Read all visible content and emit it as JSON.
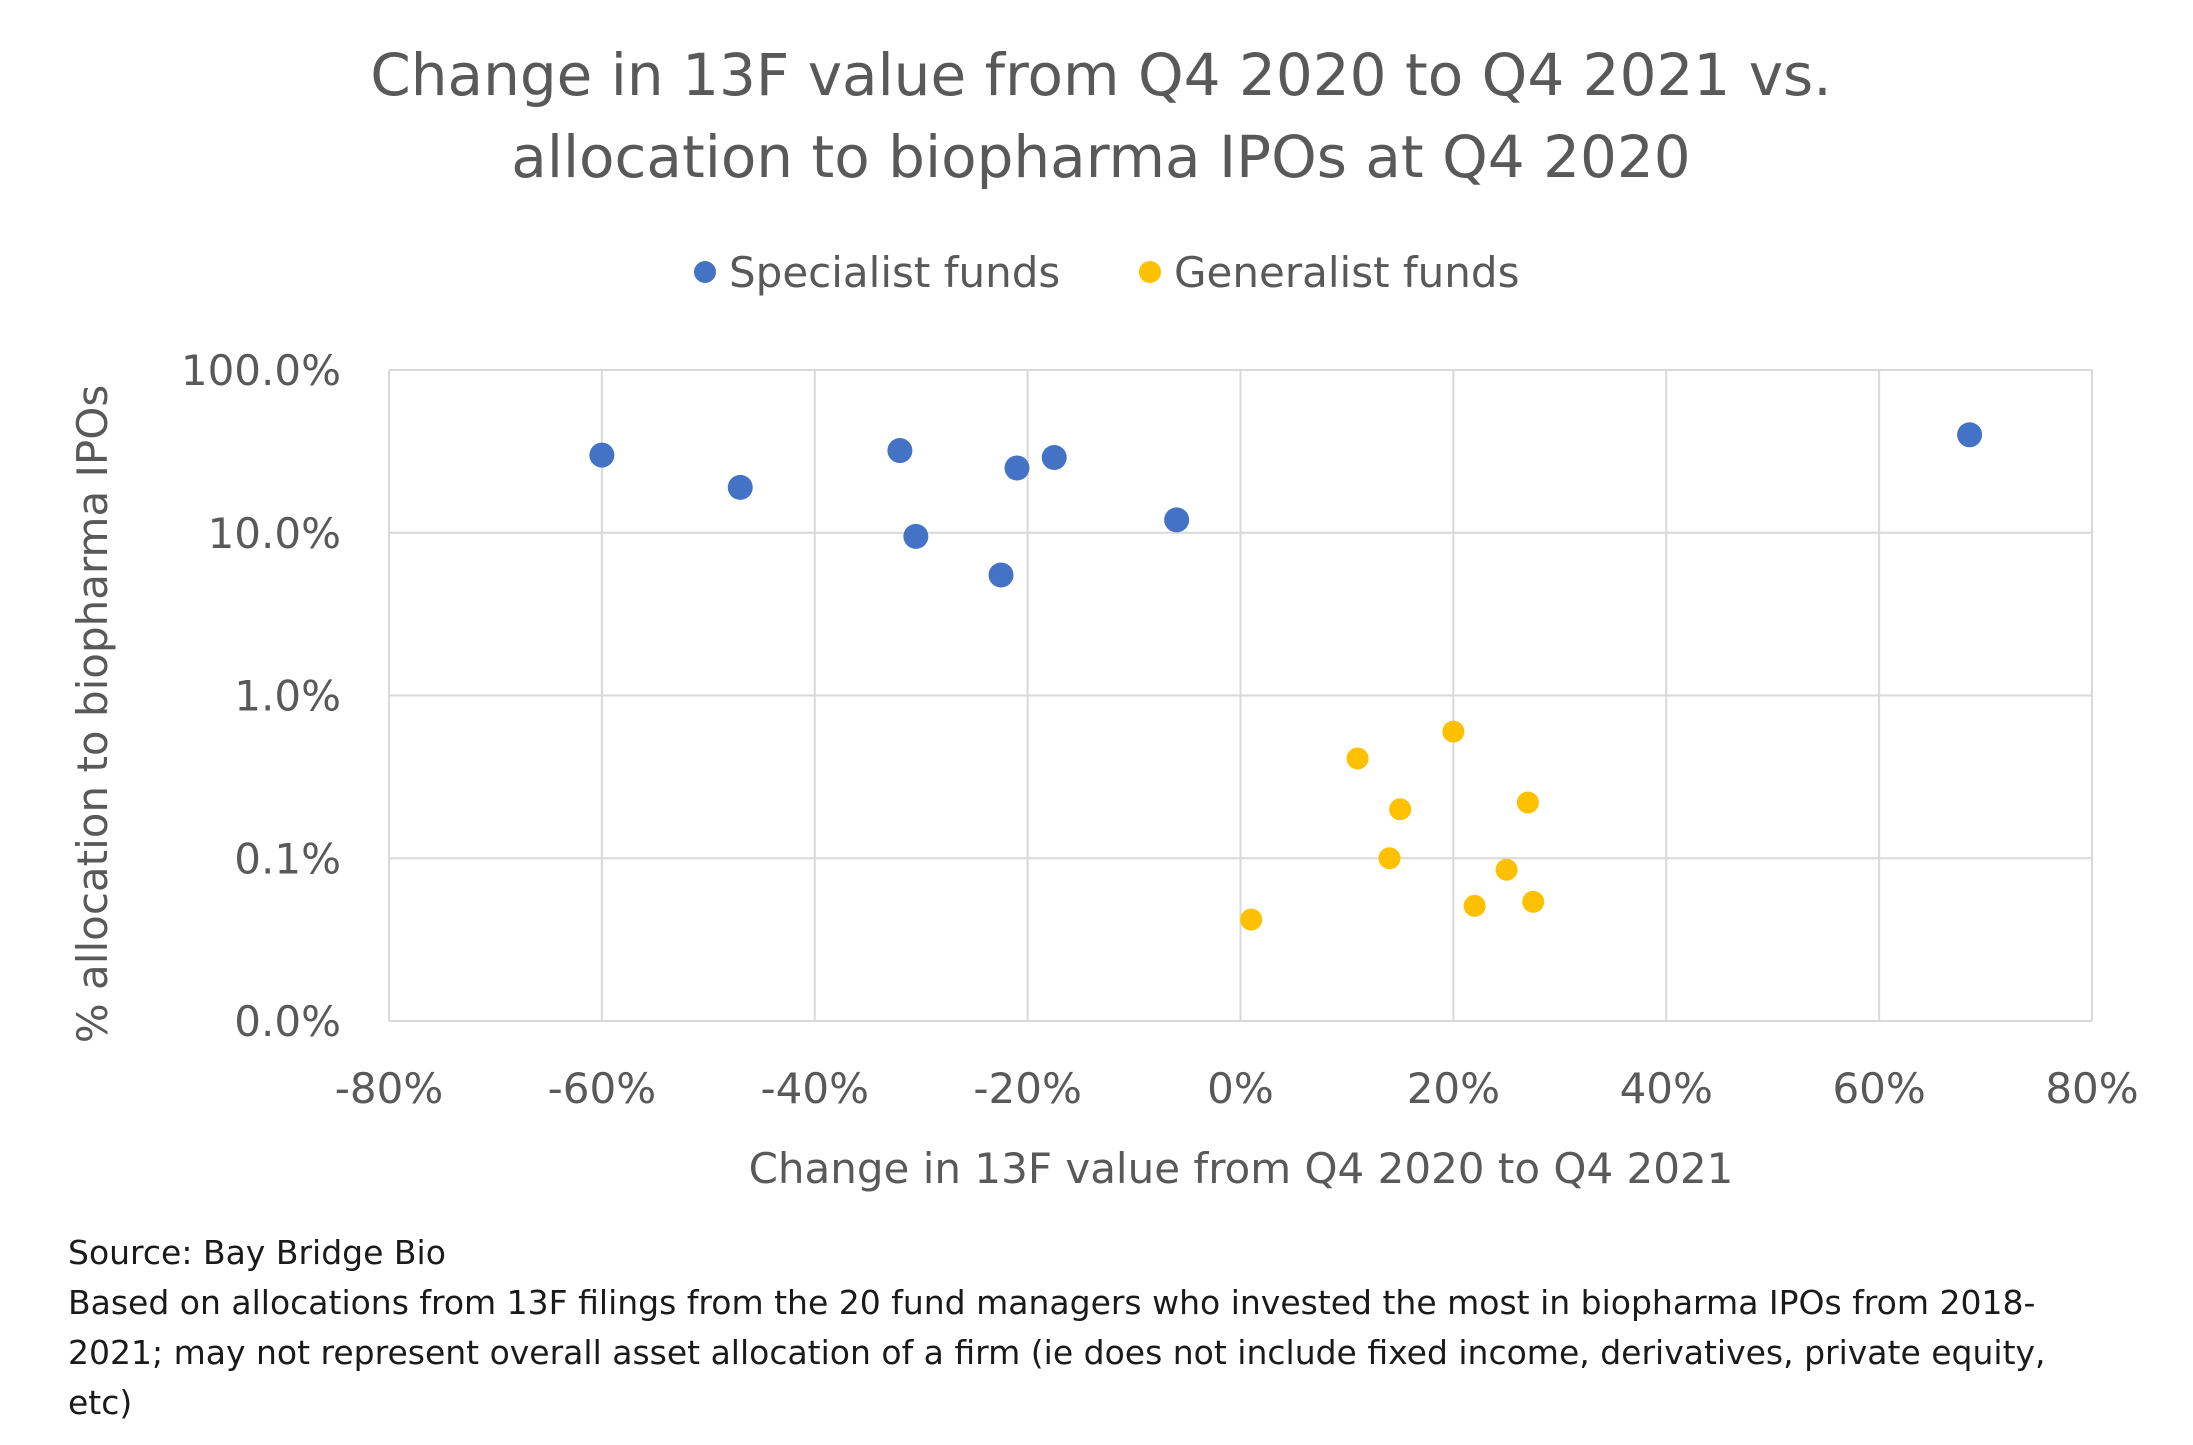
{
  "chart_data": {
    "type": "scatter",
    "title": [
      "Change in 13F value from Q4 2020 to Q4 2021 vs.",
      "allocation to biopharma IPOs at Q4 2020"
    ],
    "xlabel": "Change in 13F value from Q4 2020 to Q4 2021",
    "ylabel": "% allocation to biopharma IPOs",
    "xlim": [
      -0.8,
      0.8
    ],
    "x_ticks": [
      -0.8,
      -0.6,
      -0.4,
      -0.2,
      0,
      0.2,
      0.4,
      0.6,
      0.8
    ],
    "x_tick_labels": [
      "-80%",
      "-60%",
      "-40%",
      "-20%",
      "0%",
      "20%",
      "40%",
      "60%",
      "80%"
    ],
    "y_scale": "log",
    "ylim": [
      0.0001,
      1.0
    ],
    "y_ticks": [
      0.0001,
      0.001,
      0.01,
      0.1,
      1.0
    ],
    "y_tick_labels": [
      "0.0%",
      "0.1%",
      "1.0%",
      "10.0%",
      "100.0%"
    ],
    "grid": true,
    "legend_position": "top",
    "series": [
      {
        "name": "Specialist funds",
        "color": "#4472C4",
        "points": [
          {
            "x": -0.6,
            "y": 0.3
          },
          {
            "x": -0.47,
            "y": 0.19
          },
          {
            "x": -0.32,
            "y": 0.32
          },
          {
            "x": -0.305,
            "y": 0.095
          },
          {
            "x": -0.225,
            "y": 0.055
          },
          {
            "x": -0.21,
            "y": 0.25
          },
          {
            "x": -0.175,
            "y": 0.29
          },
          {
            "x": -0.06,
            "y": 0.12
          },
          {
            "x": 0.685,
            "y": 0.4
          }
        ]
      },
      {
        "name": "Generalist funds",
        "color": "#FFC000",
        "points": [
          {
            "x": 0.01,
            "y": 0.00042
          },
          {
            "x": 0.11,
            "y": 0.0041
          },
          {
            "x": 0.14,
            "y": 0.001
          },
          {
            "x": 0.15,
            "y": 0.002
          },
          {
            "x": 0.2,
            "y": 0.006
          },
          {
            "x": 0.22,
            "y": 0.00051
          },
          {
            "x": 0.25,
            "y": 0.00085
          },
          {
            "x": 0.27,
            "y": 0.0022
          },
          {
            "x": 0.275,
            "y": 0.00054
          }
        ]
      }
    ]
  },
  "footer": {
    "source": "Source: Bay Bridge Bio",
    "note_line1": "Based on allocations from 13F filings from the 20 fund managers who invested the most in biopharma IPOs from 2018-",
    "note_line2": "2021; may not represent overall asset allocation of a firm (ie does not include fixed income, derivatives, private equity,",
    "note_line3": "etc)"
  }
}
